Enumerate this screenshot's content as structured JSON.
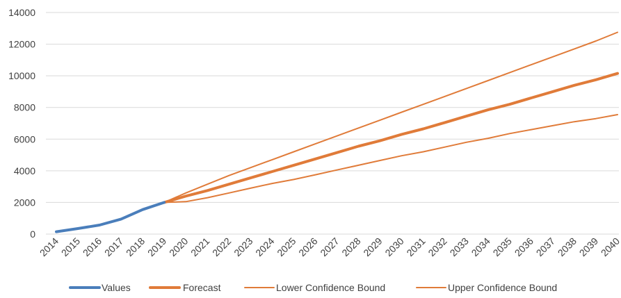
{
  "chart_data": {
    "type": "line",
    "title": "",
    "xlabel": "",
    "ylabel": "",
    "ylim": [
      0,
      14000
    ],
    "yticks": [
      0,
      2000,
      4000,
      6000,
      8000,
      10000,
      12000,
      14000
    ],
    "ytick_labels": [
      "0",
      "2000",
      "4000",
      "6000",
      "8000",
      "10000",
      "12000",
      "14000"
    ],
    "grid": true,
    "legend_position": "bottom",
    "x": [
      2014,
      2015,
      2016,
      2017,
      2018,
      2019,
      2020,
      2021,
      2022,
      2023,
      2024,
      2025,
      2026,
      2027,
      2028,
      2029,
      2030,
      2031,
      2032,
      2033,
      2034,
      2035,
      2036,
      2037,
      2038,
      2039,
      2040
    ],
    "x_labels": [
      "2014",
      "2015",
      "2016",
      "2017",
      "2018",
      "2019",
      "2020",
      "2021",
      "2022",
      "2023",
      "2024",
      "2025",
      "2026",
      "2027",
      "2028",
      "2029",
      "2030",
      "2031",
      "2032",
      "2033",
      "2034",
      "2035",
      "2036",
      "2037",
      "2038",
      "2039",
      "2040"
    ],
    "series": [
      {
        "name": "Values",
        "color": "#4a7ebb",
        "x": [
          2014,
          2015,
          2016,
          2017,
          2018,
          2019
        ],
        "values": [
          150,
          350,
          570,
          950,
          1550,
          2000
        ]
      },
      {
        "name": "Forecast",
        "color": "#e07b39",
        "x": [
          2019,
          2020,
          2021,
          2022,
          2023,
          2024,
          2025,
          2026,
          2027,
          2028,
          2029,
          2030,
          2031,
          2032,
          2033,
          2034,
          2035,
          2036,
          2037,
          2038,
          2039,
          2040
        ],
        "values": [
          2000,
          2400,
          2750,
          3150,
          3550,
          3950,
          4350,
          4750,
          5150,
          5550,
          5900,
          6300,
          6650,
          7050,
          7450,
          7850,
          8200,
          8600,
          9000,
          9400,
          9750,
          10150
        ]
      },
      {
        "name": "Lower Confidence Bound",
        "color": "#e07b39",
        "x": [
          2019,
          2020,
          2021,
          2022,
          2023,
          2024,
          2025,
          2026,
          2027,
          2028,
          2029,
          2030,
          2031,
          2032,
          2033,
          2034,
          2035,
          2036,
          2037,
          2038,
          2039,
          2040
        ],
        "values": [
          2000,
          2050,
          2300,
          2600,
          2900,
          3200,
          3450,
          3750,
          4050,
          4350,
          4650,
          4950,
          5200,
          5500,
          5800,
          6050,
          6350,
          6600,
          6850,
          7100,
          7300,
          7550
        ]
      },
      {
        "name": "Upper Confidence Bound",
        "color": "#e07b39",
        "x": [
          2019,
          2020,
          2021,
          2022,
          2023,
          2024,
          2025,
          2026,
          2027,
          2028,
          2029,
          2030,
          2031,
          2032,
          2033,
          2034,
          2035,
          2036,
          2037,
          2038,
          2039,
          2040
        ],
        "values": [
          2000,
          2600,
          3150,
          3700,
          4200,
          4700,
          5200,
          5700,
          6200,
          6700,
          7200,
          7700,
          8200,
          8700,
          9200,
          9700,
          10200,
          10700,
          11200,
          11700,
          12200,
          12750
        ]
      }
    ]
  }
}
